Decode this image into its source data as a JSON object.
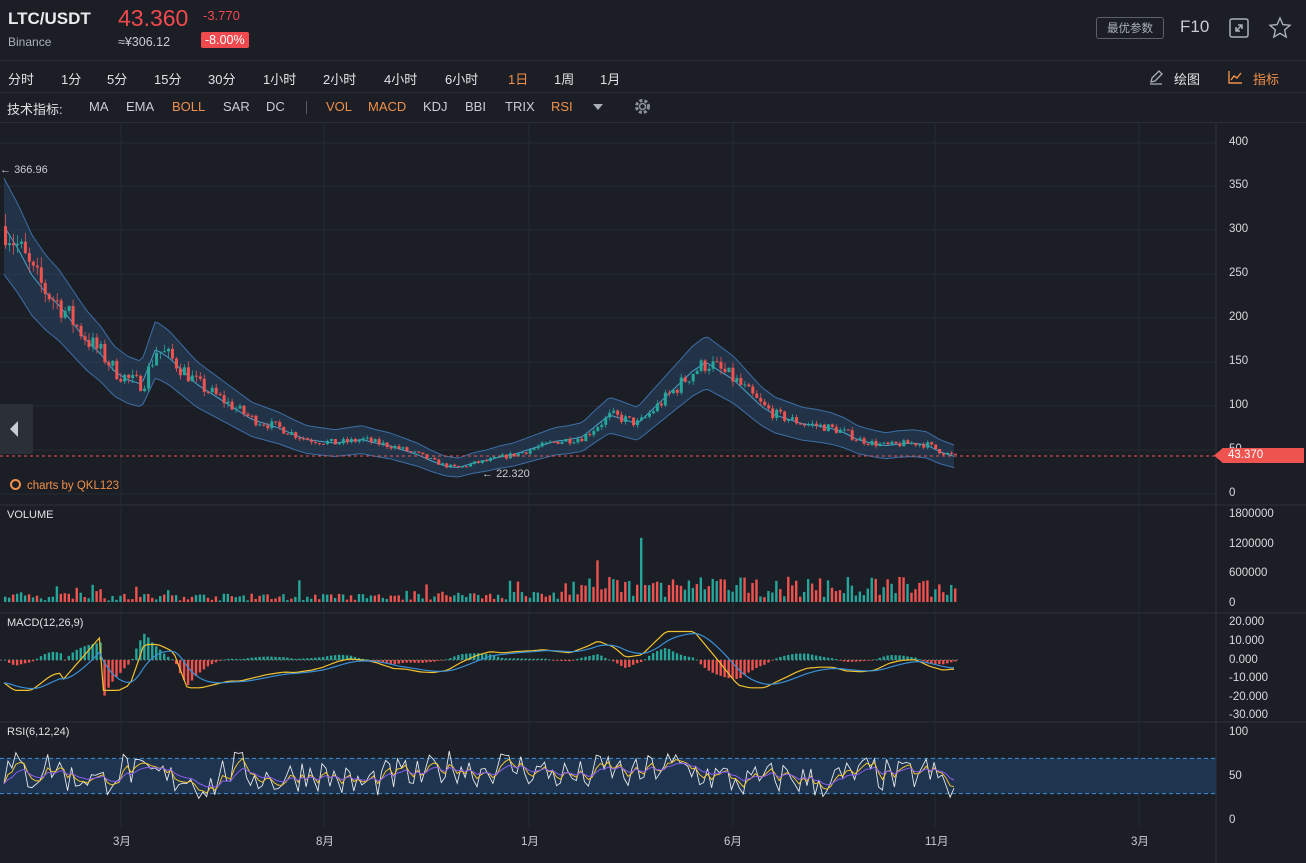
{
  "header": {
    "symbol": "LTC/USDT",
    "exchange": "Binance",
    "price": "43.360",
    "change": "-3.770",
    "cny_price": "≈¥306.12",
    "change_pct": "-8.00%",
    "params_button": "最优参数",
    "f10_button": "F10",
    "expand_icon": "expand-icon",
    "star_icon": "star-icon"
  },
  "periods": [
    "分时",
    "1分",
    "5分",
    "15分",
    "30分",
    "1小时",
    "2小时",
    "4小时",
    "6小时",
    "1日",
    "1周",
    "1月"
  ],
  "active_period": "1日",
  "tools": {
    "draw_label": "绘图",
    "indicator_label": "指标"
  },
  "indicators": {
    "label": "技术指标:",
    "main": [
      "MA",
      "EMA",
      "BOLL",
      "SAR",
      "DC"
    ],
    "sub": [
      "VOL",
      "MACD",
      "KDJ",
      "BBI",
      "TRIX",
      "RSI"
    ],
    "active": [
      "BOLL",
      "VOL",
      "MACD",
      "RSI"
    ]
  },
  "colors": {
    "up": "#26a69a",
    "down": "#ef5350",
    "accent": "#f0904a",
    "bg": "#1b1e25"
  },
  "main_chart": {
    "high_marker": "366.96",
    "low_marker": "22.320",
    "last_price_tag": "43.370",
    "watermark": "charts by QKL123",
    "y_ticks": [
      "400",
      "350",
      "300",
      "250",
      "200",
      "150",
      "100",
      "50",
      "0"
    ]
  },
  "volume_panel": {
    "title": "VOLUME",
    "y_ticks": [
      "1800000",
      "1200000",
      "600000",
      "0"
    ]
  },
  "macd_panel": {
    "title": "MACD(12,26,9)",
    "y_ticks": [
      "20.000",
      "10.000",
      "0.000",
      "-10.000",
      "-20.000",
      "-30.000"
    ]
  },
  "rsi_panel": {
    "title": "RSI(6,12,24)",
    "y_ticks": [
      "100",
      "50",
      "0"
    ]
  },
  "x_axis": [
    "3月",
    "8月",
    "1月",
    "6月",
    "11月",
    "3月"
  ],
  "chart_data": {
    "type": "line",
    "x_ticks": [
      "3月",
      "8月",
      "1月",
      "6月",
      "11月",
      "3月"
    ],
    "price_close_approx": [
      305,
      280,
      250,
      230,
      215,
      195,
      175,
      160,
      140,
      130,
      125,
      165,
      155,
      140,
      125,
      115,
      105,
      95,
      85,
      80,
      75,
      68,
      62,
      60,
      58,
      60,
      62,
      58,
      55,
      50,
      45,
      38,
      32,
      30,
      35,
      38,
      42,
      45,
      50,
      55,
      60,
      62,
      65,
      78,
      90,
      85,
      80,
      95,
      110,
      125,
      140,
      150,
      140,
      130,
      115,
      100,
      90,
      85,
      80,
      78,
      75,
      70,
      62,
      58,
      55,
      57,
      58,
      56,
      48,
      43
    ],
    "y_range": [
      0,
      400
    ],
    "series": [
      {
        "name": "RSI(6,12,24)",
        "values_approx": [
          55,
          60,
          48,
          62,
          58,
          45,
          52,
          40,
          55,
          60,
          48,
          52,
          45,
          50,
          42,
          38,
          55,
          60,
          52,
          48,
          45,
          50,
          55,
          52,
          48,
          42,
          40,
          45,
          50,
          52,
          48,
          55,
          60,
          62,
          55,
          58,
          62,
          60,
          58,
          55,
          52,
          50,
          48,
          55,
          60,
          52,
          50,
          58,
          62,
          60,
          55,
          52,
          48,
          45,
          42,
          45,
          48,
          50,
          45,
          42,
          45,
          48,
          52,
          55,
          50,
          48,
          52,
          55,
          45,
          30
        ]
      }
    ]
  }
}
